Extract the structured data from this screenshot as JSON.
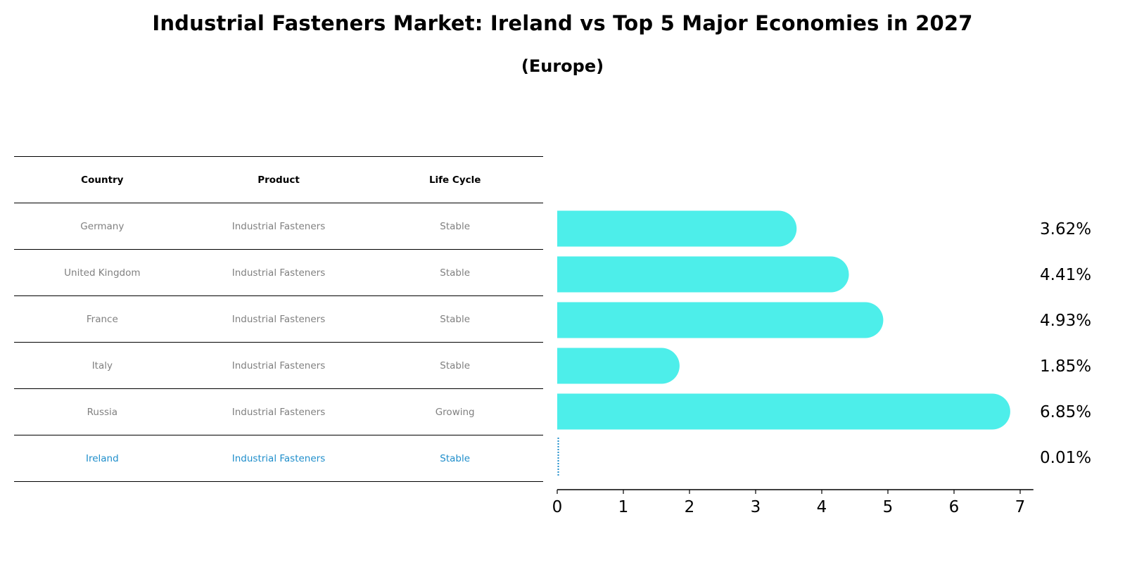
{
  "title": "Industrial Fasteners Market: Ireland vs Top 5 Major Economies in 2027",
  "subtitle": "(Europe)",
  "table": {
    "headers": [
      "Country",
      "Product",
      "Life Cycle"
    ],
    "rows": [
      {
        "country": "Germany",
        "product": "Industrial Fasteners",
        "life_cycle": "Stable"
      },
      {
        "country": "United Kingdom",
        "product": "Industrial Fasteners",
        "life_cycle": "Stable"
      },
      {
        "country": "France",
        "product": "Industrial Fasteners",
        "life_cycle": "Stable"
      },
      {
        "country": "Italy",
        "product": "Industrial Fasteners",
        "life_cycle": "Stable"
      },
      {
        "country": "Russia",
        "product": "Industrial Fasteners",
        "life_cycle": "Growing"
      },
      {
        "country": "Ireland",
        "product": "Industrial Fasteners",
        "life_cycle": "Stable",
        "highlight": true
      }
    ]
  },
  "chart_data": {
    "type": "bar",
    "orientation": "horizontal",
    "categories": [
      "Germany",
      "United Kingdom",
      "France",
      "Italy",
      "Russia",
      "Ireland"
    ],
    "values": [
      3.62,
      4.41,
      4.93,
      1.85,
      6.85,
      0.01
    ],
    "value_labels": [
      "3.62%",
      "4.41%",
      "4.93%",
      "1.85%",
      "6.85%",
      "0.01%"
    ],
    "xlim": [
      0,
      7.2
    ],
    "xticks": [
      0,
      1,
      2,
      3,
      4,
      5,
      6,
      7
    ],
    "grid": false,
    "colors": {
      "bar": "#4deeea",
      "highlight": "#1f8ecb",
      "axis": "#000000"
    }
  }
}
